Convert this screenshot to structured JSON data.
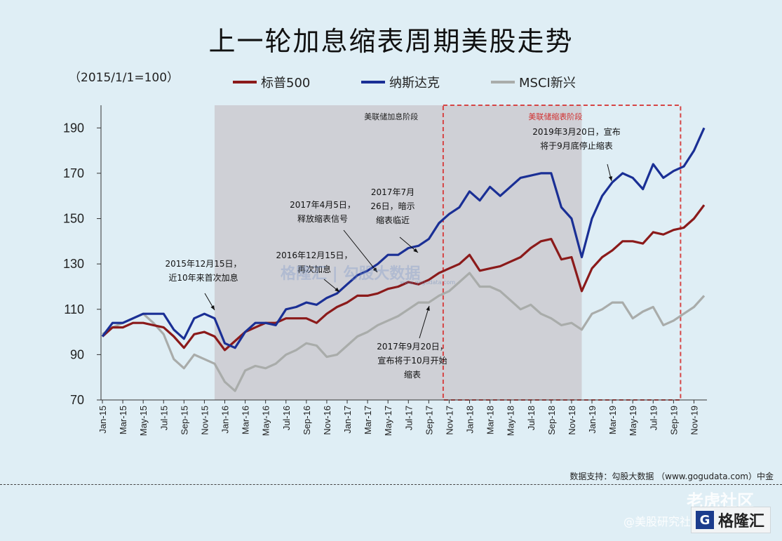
{
  "page": {
    "title": "上一轮加息缩表周期美股走势",
    "base_note": "（2015/1/1=100）",
    "source": "数据支持：勾股大数据 （www.gogudata.com）中金",
    "watermarks": {
      "center": "格隆汇 | 勾股大数据",
      "center_url": "www.gogudata.com",
      "laohu": "老虎社区",
      "author": "@美股研究社",
      "logo_letter": "G",
      "logo_text": "格隆汇"
    }
  },
  "colors": {
    "background": "#dfeef5",
    "sp500": "#8b1a1a",
    "nasdaq": "#1a2f95",
    "msci_em": "#a9acaa",
    "hike_band": "#cfd0d6",
    "taper_box": "#d64545"
  },
  "chart_data": {
    "type": "line",
    "title": "上一轮加息缩表周期美股走势",
    "ylabel": "（2015/1/1=100）",
    "ylim": [
      70,
      200
    ],
    "yticks": [
      70,
      90,
      110,
      130,
      150,
      170,
      190
    ],
    "grid": false,
    "legend_position": "top",
    "x_ticks": [
      "Jan-15",
      "Mar-15",
      "May-15",
      "Jul-15",
      "Sep-15",
      "Nov-15",
      "Jan-16",
      "Mar-16",
      "May-16",
      "Jul-16",
      "Sep-16",
      "Nov-16",
      "Jan-17",
      "Mar-17",
      "May-17",
      "Jul-17",
      "Sep-17",
      "Nov-17",
      "Jan-18",
      "Mar-18",
      "May-18",
      "Jul-18",
      "Sep-18",
      "Nov-18",
      "Jan-19",
      "Mar-19",
      "May-19",
      "Jul-19",
      "Sep-19",
      "Nov-19"
    ],
    "x": [
      "2015-01",
      "2015-02",
      "2015-03",
      "2015-04",
      "2015-05",
      "2015-06",
      "2015-07",
      "2015-08",
      "2015-09",
      "2015-10",
      "2015-11",
      "2015-12",
      "2016-01",
      "2016-02",
      "2016-03",
      "2016-04",
      "2016-05",
      "2016-06",
      "2016-07",
      "2016-08",
      "2016-09",
      "2016-10",
      "2016-11",
      "2016-12",
      "2017-01",
      "2017-02",
      "2017-03",
      "2017-04",
      "2017-05",
      "2017-06",
      "2017-07",
      "2017-08",
      "2017-09",
      "2017-10",
      "2017-11",
      "2017-12",
      "2018-01",
      "2018-02",
      "2018-03",
      "2018-04",
      "2018-05",
      "2018-06",
      "2018-07",
      "2018-08",
      "2018-09",
      "2018-10",
      "2018-11",
      "2018-12",
      "2019-01",
      "2019-02",
      "2019-03",
      "2019-04",
      "2019-05",
      "2019-06",
      "2019-07",
      "2019-08",
      "2019-09",
      "2019-10",
      "2019-11",
      "2019-12"
    ],
    "series": [
      {
        "name": "标普500",
        "color_key": "sp500",
        "values": [
          98,
          102,
          102,
          104,
          104,
          103,
          102,
          98,
          93,
          99,
          100,
          98,
          92,
          96,
          100,
          102,
          104,
          104,
          106,
          106,
          106,
          104,
          108,
          111,
          113,
          116,
          116,
          117,
          119,
          120,
          122,
          121,
          123,
          126,
          128,
          130,
          134,
          127,
          128,
          129,
          131,
          133,
          137,
          140,
          141,
          132,
          133,
          118,
          128,
          133,
          136,
          140,
          140,
          139,
          144,
          143,
          145,
          146,
          150,
          156
        ]
      },
      {
        "name": "纳斯达克",
        "color_key": "nasdaq",
        "values": [
          98,
          104,
          104,
          106,
          108,
          108,
          108,
          101,
          97,
          106,
          108,
          106,
          95,
          93,
          100,
          104,
          104,
          103,
          110,
          111,
          113,
          112,
          115,
          117,
          121,
          125,
          127,
          130,
          134,
          134,
          137,
          138,
          141,
          148,
          152,
          155,
          162,
          158,
          164,
          160,
          164,
          168,
          169,
          170,
          170,
          155,
          150,
          133,
          150,
          160,
          166,
          170,
          168,
          163,
          174,
          168,
          171,
          173,
          180,
          190
        ]
      },
      {
        "name": "MSCI新兴",
        "color_key": "msci_em",
        "values": [
          99,
          102,
          104,
          106,
          108,
          104,
          99,
          88,
          84,
          90,
          88,
          86,
          78,
          74,
          83,
          85,
          84,
          86,
          90,
          92,
          95,
          94,
          89,
          90,
          94,
          98,
          100,
          103,
          105,
          107,
          110,
          113,
          113,
          116,
          118,
          122,
          126,
          120,
          120,
          118,
          114,
          110,
          112,
          108,
          106,
          103,
          104,
          101,
          108,
          110,
          113,
          113,
          106,
          109,
          111,
          103,
          105,
          108,
          111,
          116
        ]
      }
    ],
    "bands": [
      {
        "label": "美联储加息阶段",
        "from": "2015-12",
        "to": "2018-12"
      },
      {
        "label": "美联储缩表阶段",
        "from": "2017-10",
        "to": "2019-09"
      }
    ],
    "annotations": [
      {
        "text": [
          "2015年12月15日，",
          "近10年来首次加息"
        ],
        "at": "2015-12"
      },
      {
        "text": [
          "2016年12月15日，",
          "再次加息"
        ],
        "at": "2016-12"
      },
      {
        "text": [
          "2017年4月5日，",
          "释放缩表信号"
        ],
        "at": "2017-04"
      },
      {
        "text": [
          "2017年7月",
          "26日，暗示",
          "缩表临近"
        ],
        "at": "2017-07"
      },
      {
        "text": [
          "2017年9月20日，",
          "宣布将于10月开始",
          "缩表"
        ],
        "at": "2017-09"
      },
      {
        "text": [
          "2019年3月20日，宣布",
          "将于9月底停止缩表"
        ],
        "at": "2019-03"
      }
    ]
  }
}
